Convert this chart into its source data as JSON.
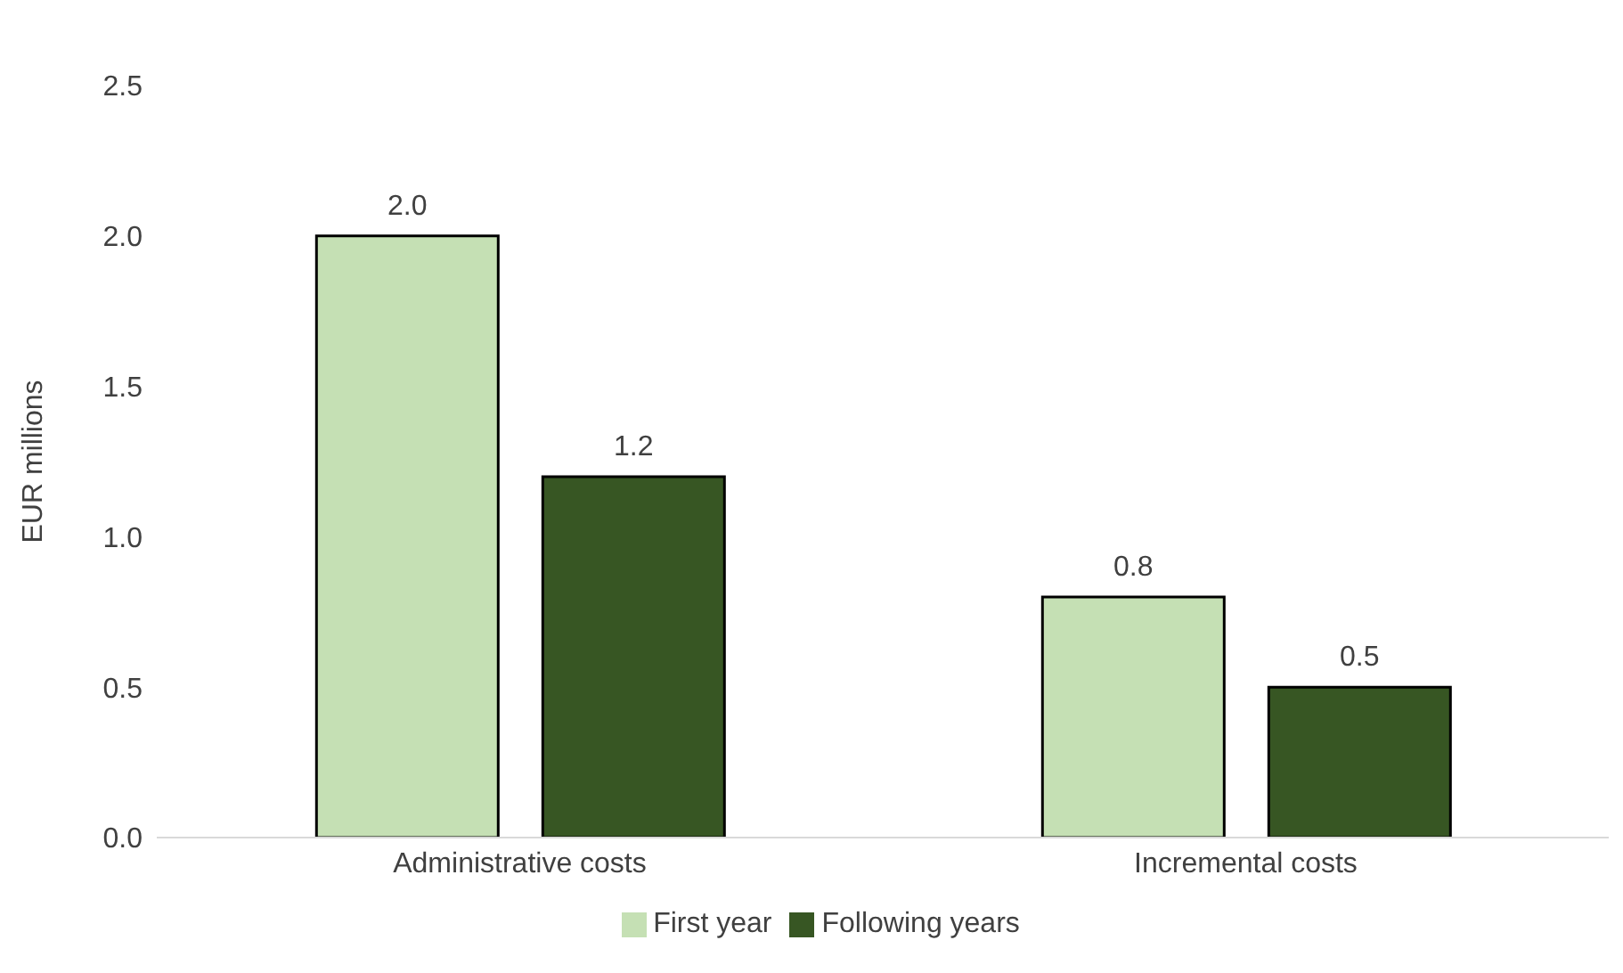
{
  "chart_data": {
    "type": "bar",
    "ylabel": "EUR millions",
    "categories": [
      "Administrative costs",
      "Incremental costs"
    ],
    "series": [
      {
        "name": "First year",
        "color": "#c5e0b4",
        "values": [
          2.0,
          0.8
        ],
        "value_labels": [
          "2.0",
          "0.8"
        ]
      },
      {
        "name": "Following years",
        "color": "#375623",
        "values": [
          1.2,
          0.5
        ],
        "value_labels": [
          "1.2",
          "0.5"
        ]
      }
    ],
    "ylim": [
      0,
      2.5
    ],
    "yticks": [
      {
        "value": 0,
        "label": "0.0"
      },
      {
        "value": 0.5,
        "label": "0.5"
      },
      {
        "value": 1,
        "label": "1.0"
      },
      {
        "value": 1.5,
        "label": "1.5"
      },
      {
        "value": 2,
        "label": "2.0"
      },
      {
        "value": 2.5,
        "label": "2.5"
      }
    ],
    "grid": false,
    "legend": "bottom"
  }
}
